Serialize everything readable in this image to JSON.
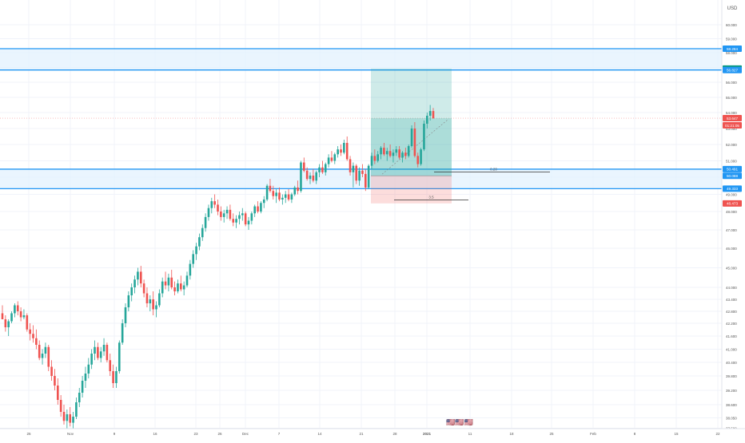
{
  "currency_label": "USD",
  "colors": {
    "up": "#26a69a",
    "down": "#ef5350",
    "zone_line": "#2196f3",
    "zone_fill": "#e3f2fd",
    "profit_fill": "#26a69a",
    "loss_fill": "#ef5350",
    "grid": "#f0f3fa",
    "axis_text": "#555555"
  },
  "chart_data": {
    "type": "candlestick",
    "price_axis": {
      "min": 37.0,
      "max": 61.2,
      "ticks": [
        "60.000",
        "59.000",
        "58.000",
        "57.000",
        "56.000",
        "55.000",
        "54.000",
        "53.000",
        "52.000",
        "51.000",
        "50.000",
        "49.000",
        "48.000",
        "47.000",
        "46.000",
        "45.000",
        "44.000",
        "43.400",
        "42.800",
        "42.200",
        "41.600",
        "41.000",
        "40.400",
        "39.800",
        "39.200",
        "38.600",
        "38.050",
        "37.500"
      ]
    },
    "time_axis": {
      "labels": [
        "26",
        "Nov",
        "9",
        "16",
        "23",
        "26",
        "Dec",
        "7",
        "14",
        "21",
        "28",
        "2021",
        "11",
        "18",
        "25",
        "Feb",
        "8",
        "15",
        "22"
      ]
    },
    "candles": [
      [
        42.7,
        43.1,
        42.4,
        42.4
      ],
      [
        42.4,
        42.6,
        41.8,
        42.0
      ],
      [
        42.0,
        42.4,
        41.6,
        42.3
      ],
      [
        42.3,
        42.8,
        42.2,
        42.7
      ],
      [
        42.7,
        43.2,
        42.5,
        43.1
      ],
      [
        43.1,
        43.3,
        42.6,
        42.8
      ],
      [
        42.8,
        43.0,
        42.3,
        42.5
      ],
      [
        42.5,
        42.9,
        42.4,
        42.6
      ],
      [
        42.6,
        42.7,
        41.8,
        41.9
      ],
      [
        41.9,
        42.2,
        41.4,
        41.7
      ],
      [
        41.7,
        42.1,
        41.3,
        41.5
      ],
      [
        41.5,
        41.9,
        41.0,
        41.2
      ],
      [
        41.2,
        41.4,
        40.5,
        40.6
      ],
      [
        40.6,
        41.0,
        40.3,
        40.8
      ],
      [
        40.8,
        41.3,
        40.6,
        41.1
      ],
      [
        41.1,
        41.2,
        40.0,
        40.2
      ],
      [
        40.2,
        40.5,
        39.6,
        39.8
      ],
      [
        39.8,
        40.1,
        39.2,
        39.4
      ],
      [
        39.4,
        39.7,
        38.6,
        38.8
      ],
      [
        38.8,
        39.0,
        38.1,
        38.3
      ],
      [
        38.3,
        38.6,
        37.7,
        37.9
      ],
      [
        37.9,
        38.4,
        37.5,
        38.2
      ],
      [
        38.2,
        38.5,
        37.6,
        37.8
      ],
      [
        37.8,
        38.3,
        37.5,
        38.1
      ],
      [
        38.1,
        38.9,
        38.0,
        38.7
      ],
      [
        38.7,
        39.3,
        38.5,
        39.1
      ],
      [
        39.1,
        39.8,
        38.9,
        39.6
      ],
      [
        39.6,
        40.2,
        39.3,
        39.9
      ],
      [
        39.9,
        40.6,
        39.7,
        40.3
      ],
      [
        40.3,
        41.0,
        40.1,
        40.8
      ],
      [
        40.8,
        41.4,
        40.5,
        41.1
      ],
      [
        41.1,
        41.3,
        40.5,
        40.6
      ],
      [
        40.6,
        41.1,
        40.4,
        40.9
      ],
      [
        40.9,
        41.5,
        40.7,
        41.2
      ],
      [
        41.2,
        41.3,
        40.4,
        40.5
      ],
      [
        40.5,
        40.8,
        39.8,
        40.0
      ],
      [
        40.0,
        40.3,
        39.3,
        39.5
      ],
      [
        39.5,
        40.2,
        39.3,
        40.0
      ],
      [
        40.0,
        41.4,
        39.9,
        41.3
      ],
      [
        41.3,
        42.4,
        41.2,
        42.2
      ],
      [
        42.2,
        43.2,
        42.0,
        43.0
      ],
      [
        43.0,
        43.8,
        42.8,
        43.6
      ],
      [
        43.6,
        44.2,
        43.3,
        44.0
      ],
      [
        44.0,
        44.6,
        43.7,
        44.4
      ],
      [
        44.4,
        45.0,
        44.1,
        44.8
      ],
      [
        44.8,
        45.1,
        44.0,
        44.2
      ],
      [
        44.2,
        44.4,
        43.5,
        43.7
      ],
      [
        43.7,
        44.0,
        43.0,
        43.2
      ],
      [
        43.2,
        43.6,
        42.8,
        43.4
      ],
      [
        43.4,
        43.8,
        42.6,
        42.9
      ],
      [
        42.9,
        43.3,
        42.5,
        43.1
      ],
      [
        43.1,
        43.9,
        43.0,
        43.7
      ],
      [
        43.7,
        44.5,
        43.5,
        44.3
      ],
      [
        44.3,
        44.8,
        43.9,
        44.1
      ],
      [
        44.1,
        44.7,
        43.8,
        44.5
      ],
      [
        44.5,
        44.9,
        43.9,
        44.0
      ],
      [
        44.0,
        44.3,
        43.6,
        43.8
      ],
      [
        43.8,
        44.4,
        43.7,
        44.2
      ],
      [
        44.2,
        44.6,
        43.8,
        43.9
      ],
      [
        43.9,
        44.3,
        43.6,
        44.1
      ],
      [
        44.1,
        44.8,
        44.0,
        44.6
      ],
      [
        44.6,
        45.4,
        44.4,
        45.2
      ],
      [
        45.2,
        45.9,
        45.0,
        45.7
      ],
      [
        45.7,
        46.3,
        45.4,
        46.1
      ],
      [
        46.1,
        46.8,
        45.9,
        46.6
      ],
      [
        46.6,
        47.3,
        46.4,
        47.1
      ],
      [
        47.1,
        47.9,
        46.9,
        47.7
      ],
      [
        47.7,
        48.4,
        47.5,
        48.2
      ],
      [
        48.2,
        48.8,
        47.9,
        48.6
      ],
      [
        48.6,
        49.0,
        48.2,
        48.4
      ],
      [
        48.4,
        48.7,
        47.8,
        48.0
      ],
      [
        48.0,
        48.3,
        47.5,
        47.7
      ],
      [
        47.7,
        48.1,
        47.4,
        47.9
      ],
      [
        47.9,
        48.3,
        47.6,
        48.1
      ],
      [
        48.1,
        48.4,
        47.5,
        47.6
      ],
      [
        47.6,
        47.9,
        47.2,
        47.4
      ],
      [
        47.4,
        47.8,
        47.1,
        47.6
      ],
      [
        47.6,
        48.0,
        47.3,
        47.8
      ],
      [
        47.8,
        48.2,
        47.5,
        47.9
      ],
      [
        47.9,
        48.0,
        47.2,
        47.3
      ],
      [
        47.3,
        47.7,
        47.0,
        47.5
      ],
      [
        47.5,
        48.0,
        47.3,
        47.9
      ],
      [
        47.9,
        48.4,
        47.7,
        48.3
      ],
      [
        48.3,
        48.6,
        47.9,
        48.0
      ],
      [
        48.0,
        48.6,
        47.9,
        48.5
      ],
      [
        48.5,
        48.9,
        48.2,
        48.7
      ],
      [
        48.7,
        49.6,
        48.6,
        49.5
      ],
      [
        49.5,
        49.9,
        49.1,
        49.2
      ],
      [
        49.2,
        49.5,
        48.7,
        48.9
      ],
      [
        48.9,
        49.3,
        48.5,
        49.1
      ],
      [
        49.1,
        49.4,
        48.6,
        48.7
      ],
      [
        48.7,
        49.0,
        48.4,
        48.8
      ],
      [
        48.8,
        49.2,
        48.5,
        49.0
      ],
      [
        49.0,
        49.3,
        48.6,
        48.7
      ],
      [
        48.7,
        49.1,
        48.5,
        49.0
      ],
      [
        49.0,
        49.5,
        48.9,
        49.4
      ],
      [
        49.4,
        49.8,
        49.0,
        49.2
      ],
      [
        49.2,
        51.0,
        49.1,
        50.9
      ],
      [
        50.9,
        51.2,
        50.3,
        50.4
      ],
      [
        50.4,
        50.6,
        49.8,
        49.9
      ],
      [
        49.9,
        50.3,
        49.6,
        50.1
      ],
      [
        50.1,
        50.5,
        49.7,
        49.8
      ],
      [
        49.8,
        50.4,
        49.6,
        50.3
      ],
      [
        50.3,
        50.8,
        50.0,
        50.6
      ],
      [
        50.6,
        51.0,
        50.2,
        50.3
      ],
      [
        50.3,
        50.9,
        50.1,
        50.8
      ],
      [
        50.8,
        51.4,
        50.6,
        51.2
      ],
      [
        51.2,
        51.6,
        50.9,
        51.0
      ],
      [
        51.0,
        51.5,
        50.8,
        51.4
      ],
      [
        51.4,
        51.9,
        51.2,
        51.7
      ],
      [
        51.7,
        52.0,
        51.3,
        51.5
      ],
      [
        51.5,
        52.3,
        51.4,
        52.1
      ],
      [
        52.1,
        52.5,
        51.0,
        51.1
      ],
      [
        51.1,
        51.3,
        50.1,
        50.3
      ],
      [
        50.3,
        50.9,
        49.4,
        50.7
      ],
      [
        50.7,
        50.8,
        49.6,
        49.8
      ],
      [
        49.8,
        50.6,
        49.5,
        50.4
      ],
      [
        50.4,
        50.8,
        50.0,
        50.2
      ],
      [
        50.2,
        50.5,
        49.2,
        49.4
      ],
      [
        49.4,
        50.8,
        49.3,
        50.7
      ],
      [
        50.7,
        51.5,
        50.5,
        51.3
      ],
      [
        51.3,
        51.7,
        50.8,
        51.0
      ],
      [
        51.0,
        51.6,
        50.9,
        51.4
      ],
      [
        51.4,
        51.9,
        51.1,
        51.8
      ],
      [
        51.8,
        52.1,
        51.3,
        51.4
      ],
      [
        51.4,
        51.8,
        51.0,
        51.6
      ],
      [
        51.6,
        52.0,
        51.2,
        51.3
      ],
      [
        51.3,
        51.7,
        50.9,
        51.5
      ],
      [
        51.5,
        51.9,
        51.3,
        51.7
      ],
      [
        51.7,
        51.9,
        51.1,
        51.2
      ],
      [
        51.2,
        51.6,
        50.9,
        51.5
      ],
      [
        51.5,
        51.8,
        51.1,
        51.3
      ],
      [
        51.3,
        52.0,
        51.2,
        51.9
      ],
      [
        51.9,
        53.2,
        51.8,
        53.0
      ],
      [
        53.0,
        53.4,
        51.2,
        51.3
      ],
      [
        51.3,
        51.5,
        50.6,
        50.8
      ],
      [
        50.8,
        51.8,
        50.7,
        51.7
      ],
      [
        51.7,
        53.5,
        51.6,
        53.3
      ],
      [
        53.3,
        54.0,
        53.0,
        53.8
      ],
      [
        53.8,
        54.5,
        53.5,
        54.1
      ],
      [
        54.1,
        54.3,
        53.6,
        53.65
      ]
    ],
    "horizontal_levels": [
      {
        "price": 58.284,
        "label": "58.284",
        "color": "#2196f3"
      },
      {
        "price": 56.923,
        "label": "56.923",
        "color": "#089981"
      },
      {
        "price": 56.827,
        "label": "56.827",
        "color": "#2196f3"
      },
      {
        "price": 53.647,
        "label": "53.647",
        "color": "#ef5350"
      },
      {
        "price": 50.491,
        "label": "50.491",
        "color": "#2196f3"
      },
      {
        "price": 50.088,
        "label": "50.088",
        "color": "#2196f3"
      },
      {
        "price": 49.333,
        "label": "49.333",
        "color": "#2196f3"
      },
      {
        "price": 48.473,
        "label": "48.473",
        "color": "#ef5350"
      }
    ],
    "countdown_label": "01:21:05",
    "zones": [
      {
        "top": 58.284,
        "bottom": 56.827
      },
      {
        "top": 50.491,
        "bottom": 49.333
      }
    ],
    "position": {
      "entry": 50.088,
      "target": 56.923,
      "stop": 48.473,
      "start_index": 118,
      "end_index": 145
    },
    "annotations": [
      {
        "label": "0.20",
        "price": 50.41,
        "start_index": 139,
        "end_index": 182
      },
      {
        "label": "3.5",
        "price": 48.63,
        "start_index": 126,
        "end_index": 155
      }
    ],
    "events_glyph": "🇺🇸🇺🇸🇺🇸"
  }
}
